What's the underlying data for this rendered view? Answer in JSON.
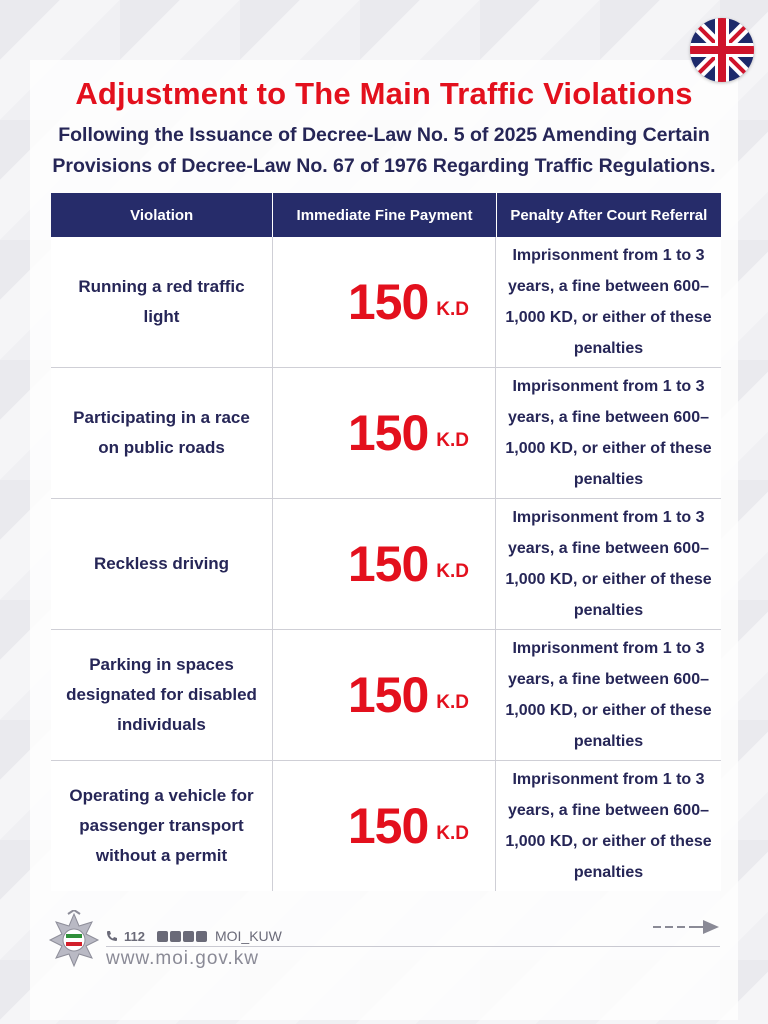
{
  "header": {
    "title": "Adjustment to The Main Traffic Violations",
    "subtitle_line1": "Following the Issuance of Decree-Law No. 5 of 2025 Amending Certain",
    "subtitle_line2": "Provisions of Decree-Law No. 67 of 1976 Regarding Traffic Regulations."
  },
  "table": {
    "headers": [
      "Violation",
      "Immediate Fine Payment",
      "Penalty After Court Referral"
    ],
    "rows": [
      {
        "violation": "Running a red traffic light",
        "amount": "150",
        "unit": "K.D",
        "penalty": "Imprisonment from 1 to 3 years, a fine between 600–1,000 KD, or either of these penalties"
      },
      {
        "violation": "Participating in a race on public roads",
        "amount": "150",
        "unit": "K.D",
        "penalty": "Imprisonment from 1 to 3 years, a fine between 600–1,000 KD, or either of these penalties"
      },
      {
        "violation": "Reckless driving",
        "amount": "150",
        "unit": "K.D",
        "penalty": "Imprisonment from 1 to 3 years, a fine between 600–1,000 KD, or either of these penalties"
      },
      {
        "violation": "Parking in spaces designated for disabled individuals",
        "amount": "150",
        "unit": "K.D",
        "penalty": "Imprisonment from 1 to 3 years, a fine between 600–1,000 KD, or either of these penalties"
      },
      {
        "violation": "Operating a vehicle for passenger transport without a permit",
        "amount": "150",
        "unit": "K.D",
        "penalty": "Imprisonment from 1 to 3 years, a fine between 600–1,000 KD, or either of these penalties"
      }
    ]
  },
  "footer": {
    "phone": "112",
    "handle": "MOI_KUW",
    "website": "www.moi.gov.kw",
    "social_icons": [
      "youtube-icon",
      "facebook-icon",
      "x-icon",
      "instagram-icon"
    ]
  },
  "colors": {
    "title_red": "#e3101d",
    "navy": "#262c6a",
    "text_navy": "#262657"
  },
  "icons": {
    "flag": "uk-flag-icon",
    "emblem": "moi-emblem-icon",
    "arrow": "next-arrow-icon",
    "phone": "phone-icon"
  }
}
